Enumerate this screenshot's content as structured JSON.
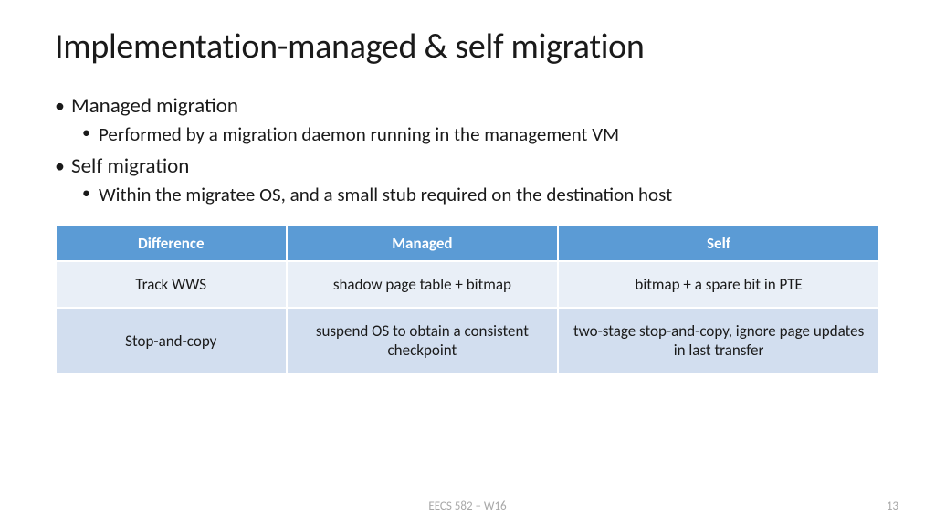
{
  "title": "Implementation-managed & self migration",
  "bullets": {
    "b1": "Managed migration",
    "b1a": "Performed by a migration daemon running in the management VM",
    "b2": "Self migration",
    "b2a": "Within the migratee OS, and a small stub required on the destination host"
  },
  "table": {
    "header_bg": "#5b9bd5",
    "header_fg": "#ffffff",
    "row_bg_alt1": "#e9eff7",
    "row_bg_alt2": "#d2deef",
    "columns": [
      "Difference",
      "Managed",
      "Self"
    ],
    "rows": [
      [
        "Track WWS",
        "shadow page table + bitmap",
        "bitmap + a spare bit in PTE"
      ],
      [
        "Stop-and-copy",
        "suspend OS to obtain a consistent checkpoint",
        "two-stage stop-and-copy, ignore page updates in last transfer"
      ]
    ],
    "col_widths": [
      "28%",
      "33%",
      "39%"
    ]
  },
  "footer": "EECS 582 – W16",
  "page_number": "13"
}
